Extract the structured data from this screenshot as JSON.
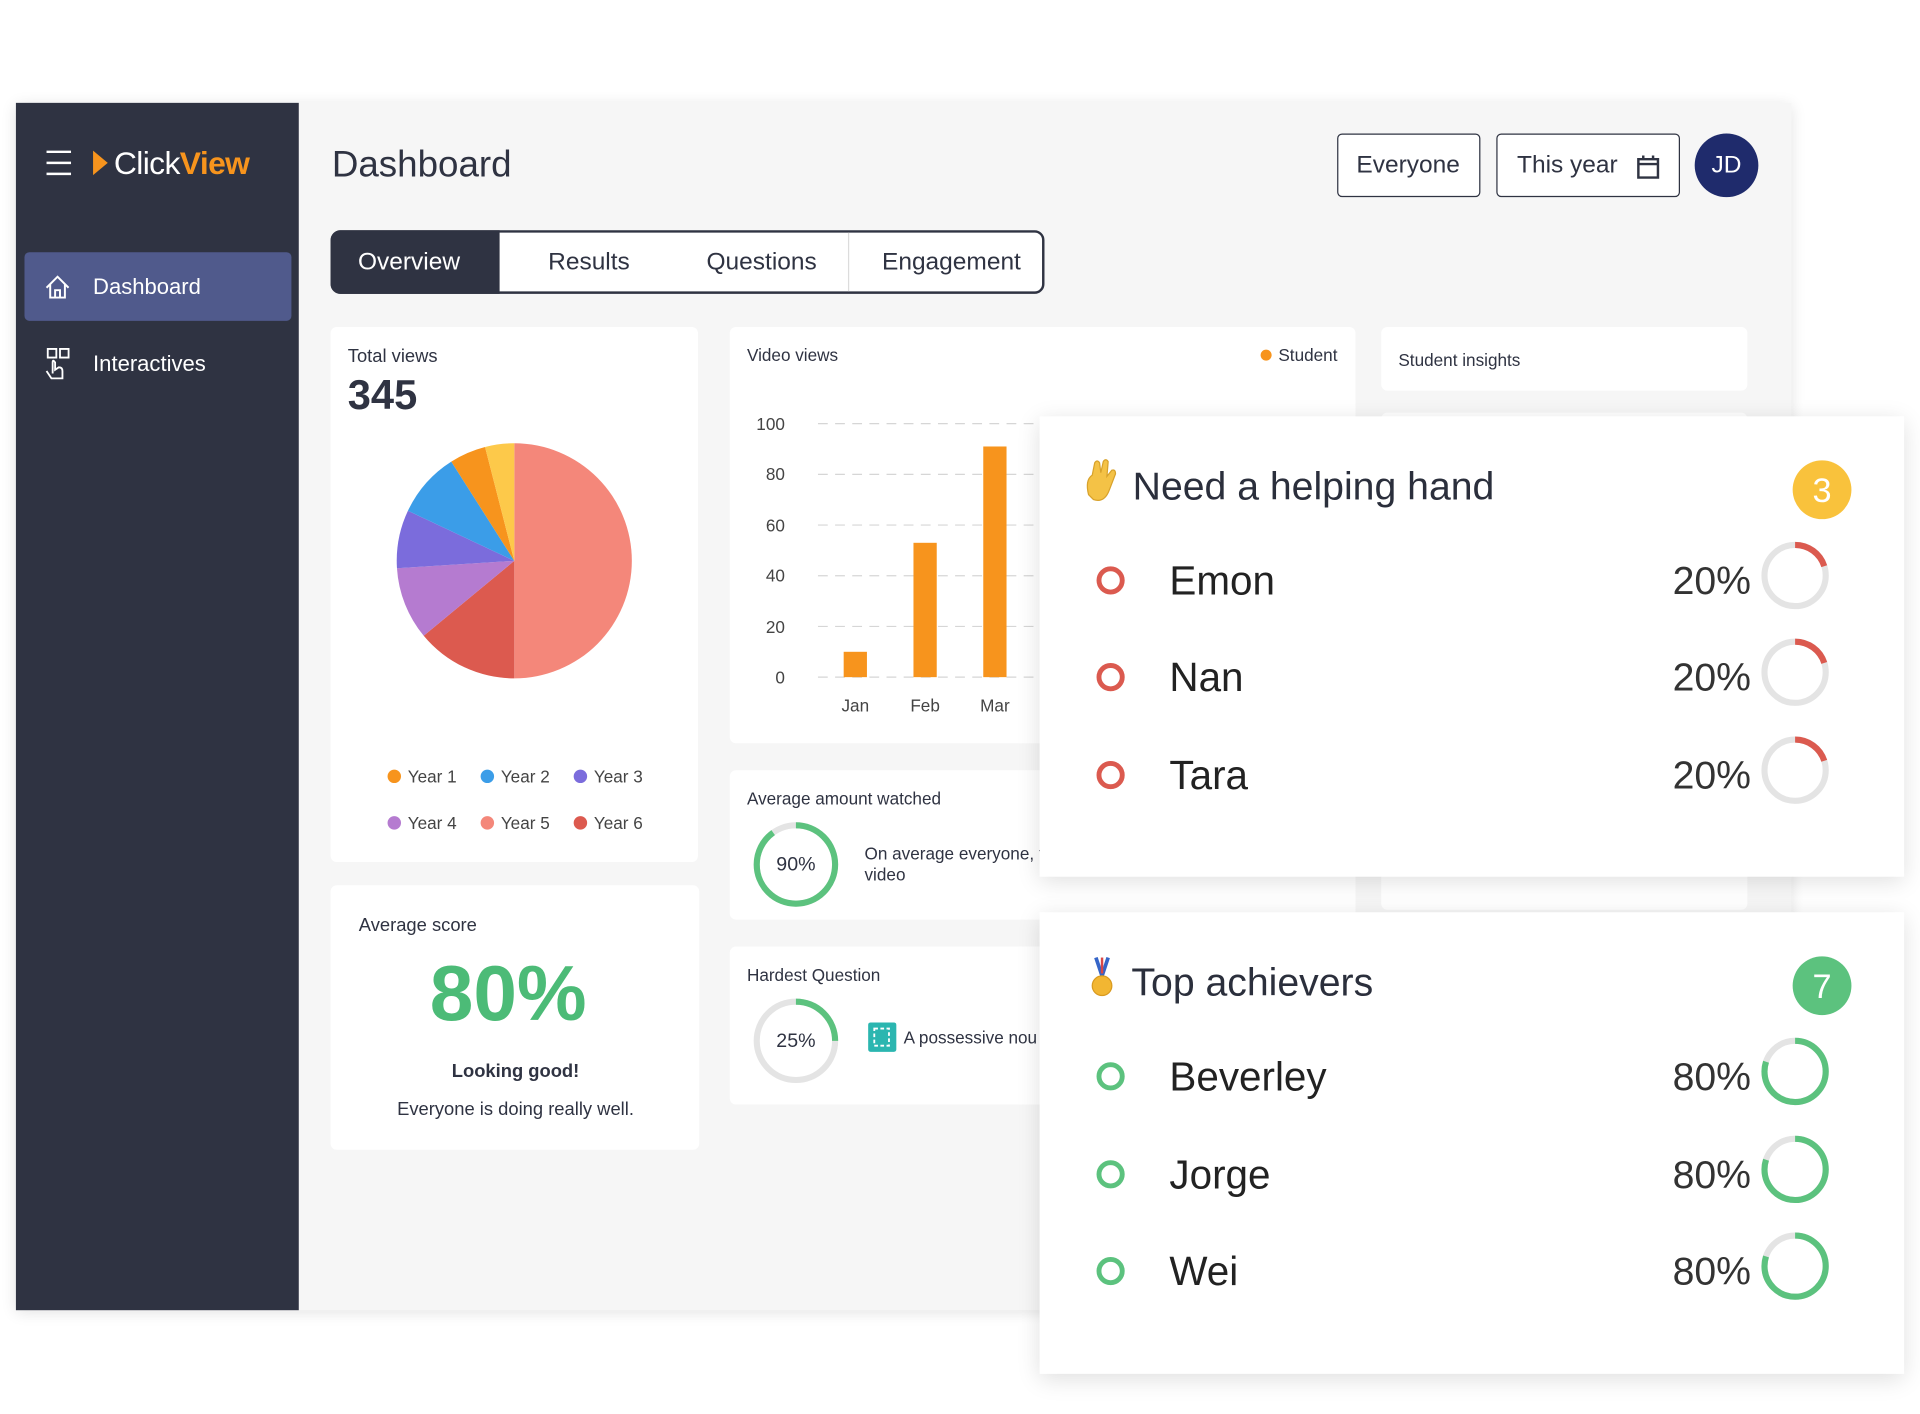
{
  "sidebar": {
    "logo_click": "Click",
    "logo_view": "View",
    "nav": [
      "Dashboard",
      "Interactives"
    ]
  },
  "header": {
    "title": "Dashboard",
    "filters": [
      "Everyone",
      "This year"
    ],
    "avatar": "JD"
  },
  "tabs": [
    "Overview",
    "Results",
    "Questions",
    "Engagement"
  ],
  "total_views": {
    "title": "Total views",
    "value": 345,
    "chart": {
      "type": "pie",
      "categories": [
        "Year 5",
        "Year 6",
        "Year 4",
        "Year 3",
        "Year 2",
        "Year 1",
        null
      ],
      "values": [
        50,
        14,
        10,
        8,
        9,
        5,
        4
      ],
      "colors": [
        "#f4877a",
        "#dc5a4f",
        "#b57bd0",
        "#7b6cdc",
        "#3b9de8",
        "#f7941d",
        "#fdc94a"
      ]
    }
  },
  "average_score": {
    "title": "Average score",
    "value": 80,
    "value_label": "80%",
    "message": "Looking good!",
    "detail": "Everyone is doing really well."
  },
  "video_views": {
    "type": "bar",
    "title": "Video views",
    "categories": [
      "Jan",
      "Feb",
      "Mar"
    ],
    "series": [
      {
        "name": "Student",
        "color": "#f7941d",
        "values": [
          10,
          53,
          91
        ]
      }
    ],
    "ylim": [
      0,
      100
    ],
    "yticks": [
      0,
      20,
      40,
      60,
      80,
      100
    ],
    "grid": true
  },
  "average_watched": {
    "title": "Average amount watched",
    "value": 90,
    "value_label": "90%",
    "text": [
      "On average everyone, th",
      "video"
    ]
  },
  "hardest_question": {
    "title": "Hardest Question",
    "value": 25,
    "value_label": "25%",
    "text": "A possessive nou"
  },
  "student_insights": {
    "title": "Student insights"
  },
  "helping_hand": {
    "title": "Need a helping hand",
    "count": 3,
    "color": "#db5a4f",
    "students": [
      {
        "name": "Emon",
        "value": 20,
        "value_label": "20%"
      },
      {
        "name": "Nan",
        "value": 20,
        "value_label": "20%"
      },
      {
        "name": "Tara",
        "value": 20,
        "value_label": "20%"
      }
    ]
  },
  "top_achievers": {
    "title": "Top achievers",
    "count": 7,
    "color": "#5cc27e",
    "students": [
      {
        "name": "Beverley",
        "value": 80,
        "value_label": "80%"
      },
      {
        "name": "Jorge",
        "value": 80,
        "value_label": "80%"
      },
      {
        "name": "Wei",
        "value": 80,
        "value_label": "80%"
      }
    ]
  }
}
